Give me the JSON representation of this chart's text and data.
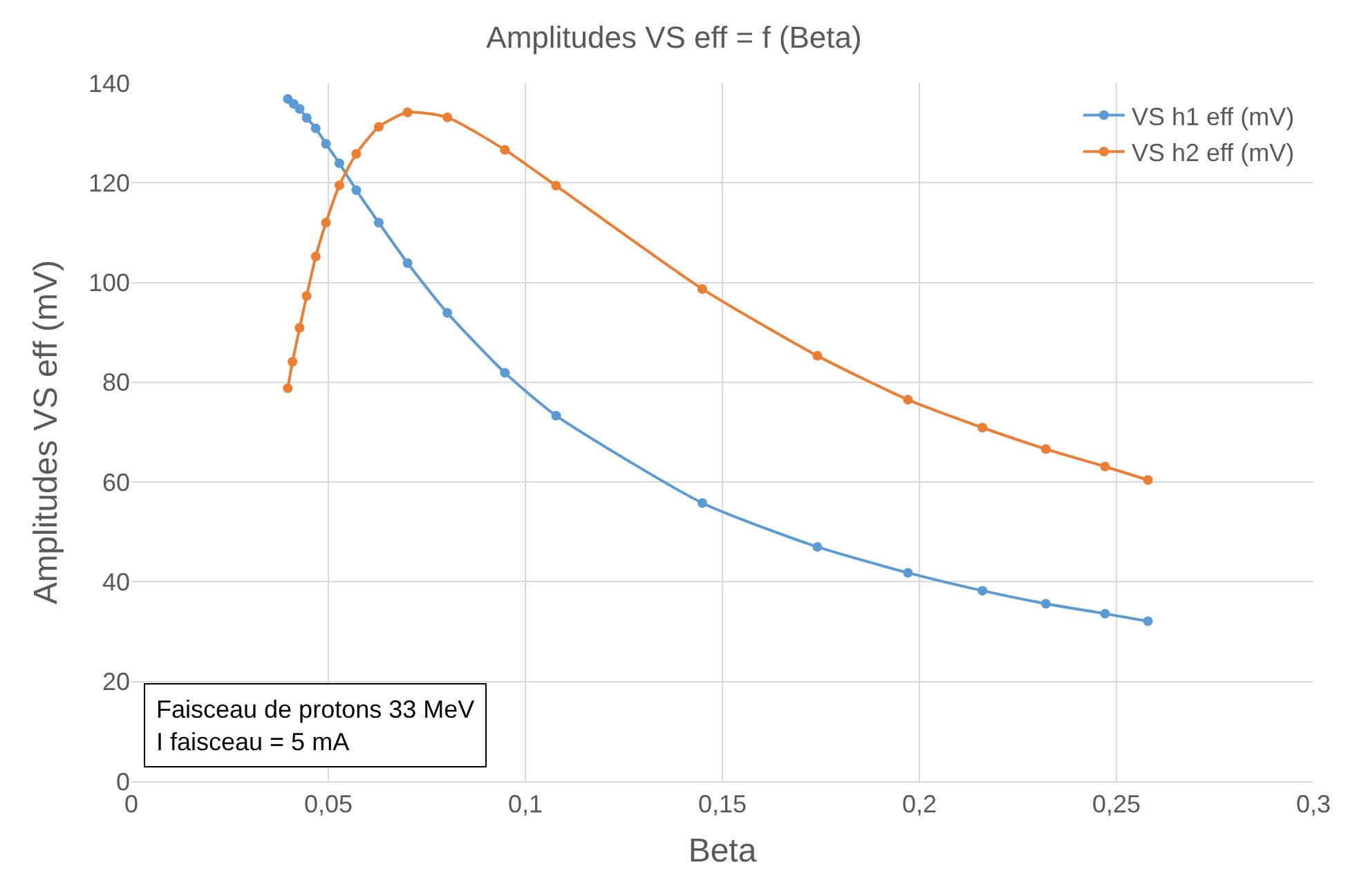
{
  "chart_data": {
    "type": "line",
    "title": "Amplitudes VS eff = f (Beta)",
    "xlabel": "Beta",
    "ylabel": "Amplitudes VS eff (mV)",
    "xlim": [
      0,
      0.3
    ],
    "ylim": [
      0,
      140
    ],
    "xticks": [
      0,
      {
        "value": 0.05,
        "label": "0,05"
      },
      {
        "value": 0.1,
        "label": "0,1"
      },
      {
        "value": 0.15,
        "label": "0,15"
      },
      {
        "value": 0.2,
        "label": "0,2"
      },
      {
        "value": 0.25,
        "label": "0,25"
      },
      {
        "value": 0.3,
        "label": "0,3"
      }
    ],
    "yticks": [
      0,
      20,
      40,
      60,
      80,
      100,
      120,
      140
    ],
    "grid": true,
    "legend": "top right",
    "marker": "circle",
    "line_style": "solid",
    "annotations": [
      "Faisceau de protons 33 MeV\nI faisceau = 5 mA"
    ],
    "series": [
      {
        "name": "VS h1 eff (mV)",
        "color": "#5b9bd5",
        "x": [
          0.0397,
          0.0412,
          0.0427,
          0.0445,
          0.0468,
          0.0494,
          0.0528,
          0.0571,
          0.0628,
          0.0701,
          0.0802,
          0.0948,
          0.1078,
          0.1449,
          0.1741,
          0.1971,
          0.216,
          0.2321,
          0.2471,
          0.258
        ],
        "values": [
          136.8,
          135.8,
          134.8,
          133.0,
          130.9,
          127.8,
          123.9,
          118.5,
          112.0,
          103.9,
          93.9,
          81.9,
          73.3,
          55.8,
          47.0,
          41.8,
          38.2,
          35.6,
          33.6,
          32.1
        ]
      },
      {
        "name": "VS h2 eff (mV)",
        "color": "#ed7d31",
        "x": [
          0.0397,
          0.0409,
          0.0427,
          0.0445,
          0.0468,
          0.0494,
          0.0528,
          0.0571,
          0.0628,
          0.0701,
          0.0802,
          0.0948,
          0.1078,
          0.1449,
          0.1741,
          0.1971,
          0.216,
          0.2321,
          0.2471,
          0.258
        ],
        "values": [
          78.8,
          84.1,
          90.9,
          97.3,
          105.2,
          112.0,
          119.5,
          125.8,
          131.2,
          134.1,
          133.1,
          126.6,
          119.4,
          98.7,
          85.3,
          76.5,
          70.9,
          66.6,
          63.1,
          60.4
        ]
      }
    ]
  }
}
